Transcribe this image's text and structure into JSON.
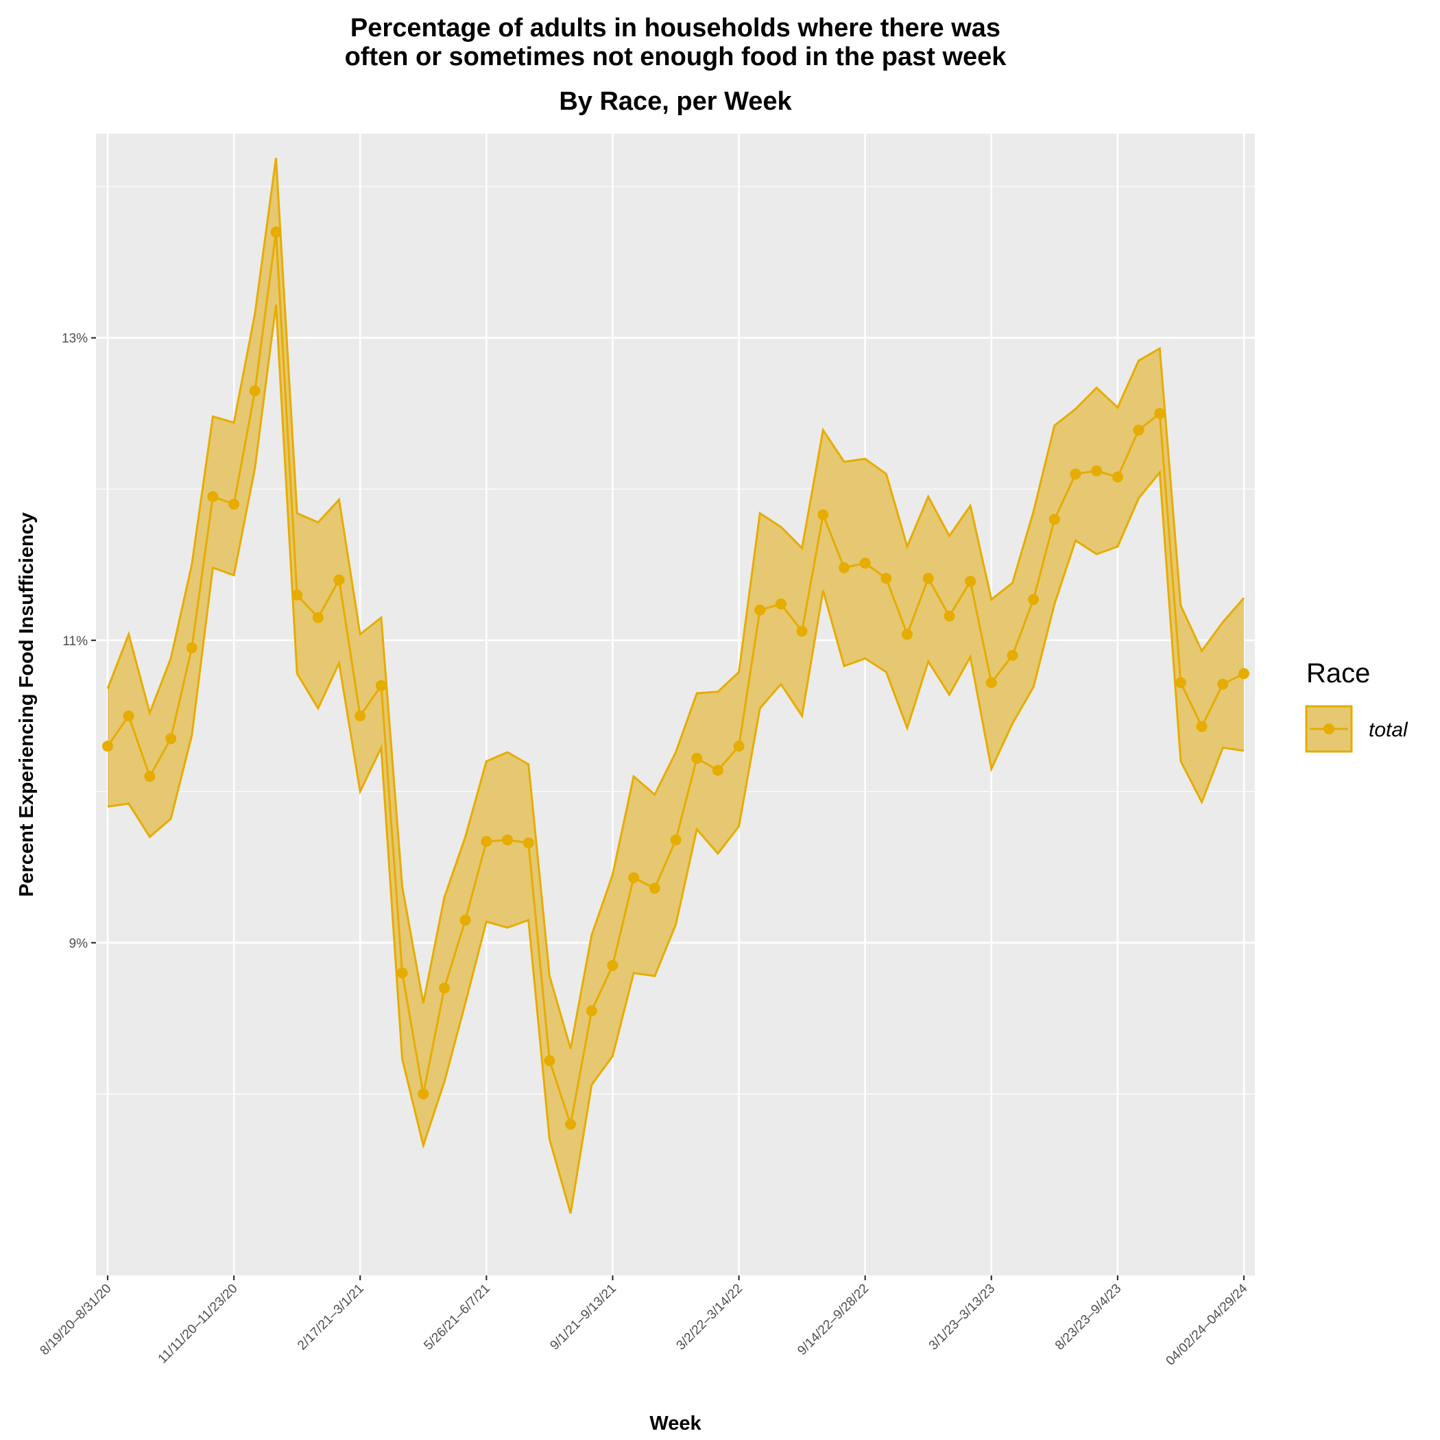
{
  "chart_data": {
    "type": "line",
    "title_line1": "Percentage of adults in households where there was",
    "title_line2": "often or sometimes not enough food in the past week",
    "subtitle": "By Race, per Week",
    "xlabel": "Week",
    "ylabel": "Percent Experiencing Food Insufficiency",
    "ylim": [
      6.8,
      14.35
    ],
    "y_ticks": [
      9,
      11,
      13
    ],
    "y_tick_labels": [
      "9%",
      "11%",
      "13%"
    ],
    "y_minor_ticks": [
      8,
      10,
      12,
      14
    ],
    "x_ticks": [
      {
        "index": 0,
        "label": "8/19/20–8/31/20"
      },
      {
        "index": 6,
        "label": "11/11/20–11/23/20"
      },
      {
        "index": 12,
        "label": "2/17/21–3/1/21"
      },
      {
        "index": 18,
        "label": "5/26/21–6/7/21"
      },
      {
        "index": 24,
        "label": "9/1/21–9/13/21"
      },
      {
        "index": 30,
        "label": "3/2/22–3/14/22"
      },
      {
        "index": 36,
        "label": "9/14/22–9/28/22"
      },
      {
        "index": 42,
        "label": "3/1/23–3/13/23"
      },
      {
        "index": 48,
        "label": "8/23/23–9/4/23"
      },
      {
        "index": 54,
        "label": "04/02/24–04/29/24"
      }
    ],
    "series": [
      {
        "name": "total",
        "color": "#E6AC00",
        "fill": "#E6C872",
        "values": [
          10.3,
          10.5,
          10.1,
          10.35,
          10.95,
          11.95,
          11.9,
          12.65,
          13.7,
          11.3,
          11.15,
          11.4,
          10.5,
          10.7,
          8.8,
          8.0,
          8.7,
          9.15,
          9.67,
          9.68,
          9.66,
          8.22,
          7.8,
          8.55,
          8.85,
          9.43,
          9.36,
          9.68,
          10.22,
          10.14,
          10.3,
          11.2,
          11.24,
          11.06,
          11.83,
          11.48,
          11.51,
          11.41,
          11.04,
          11.41,
          11.16,
          11.39,
          10.72,
          10.9,
          11.27,
          11.8,
          12.1,
          12.12,
          12.08,
          12.39,
          12.5,
          10.72,
          10.43,
          10.71,
          10.78
        ],
        "lower": [
          9.9,
          9.92,
          9.7,
          9.82,
          10.37,
          11.48,
          11.43,
          12.14,
          13.22,
          10.78,
          10.55,
          10.85,
          10.0,
          10.29,
          8.23,
          7.66,
          8.08,
          8.6,
          9.14,
          9.1,
          9.15,
          7.7,
          7.21,
          8.06,
          8.25,
          8.8,
          8.78,
          9.12,
          9.75,
          9.59,
          9.77,
          10.55,
          10.71,
          10.5,
          11.33,
          10.83,
          10.88,
          10.79,
          10.42,
          10.86,
          10.64,
          10.89,
          10.15,
          10.45,
          10.69,
          11.24,
          11.66,
          11.57,
          11.62,
          11.94,
          12.11,
          10.2,
          9.93,
          10.29,
          10.27
        ],
        "upper": [
          10.68,
          11.04,
          10.52,
          10.88,
          11.5,
          12.48,
          12.44,
          13.16,
          14.19,
          11.84,
          11.78,
          11.93,
          11.04,
          11.15,
          9.37,
          8.6,
          9.3,
          9.7,
          10.2,
          10.26,
          10.18,
          8.78,
          8.3,
          9.05,
          9.45,
          10.1,
          9.98,
          10.26,
          10.65,
          10.66,
          10.79,
          11.84,
          11.75,
          11.61,
          12.39,
          12.18,
          12.2,
          12.1,
          11.62,
          11.95,
          11.69,
          11.89,
          11.27,
          11.38,
          11.85,
          12.42,
          12.53,
          12.67,
          12.54,
          12.85,
          12.93,
          11.23,
          10.93,
          11.12,
          11.28
        ]
      }
    ],
    "legend": {
      "title": "Race",
      "position": "right",
      "entries": [
        "total"
      ]
    }
  }
}
